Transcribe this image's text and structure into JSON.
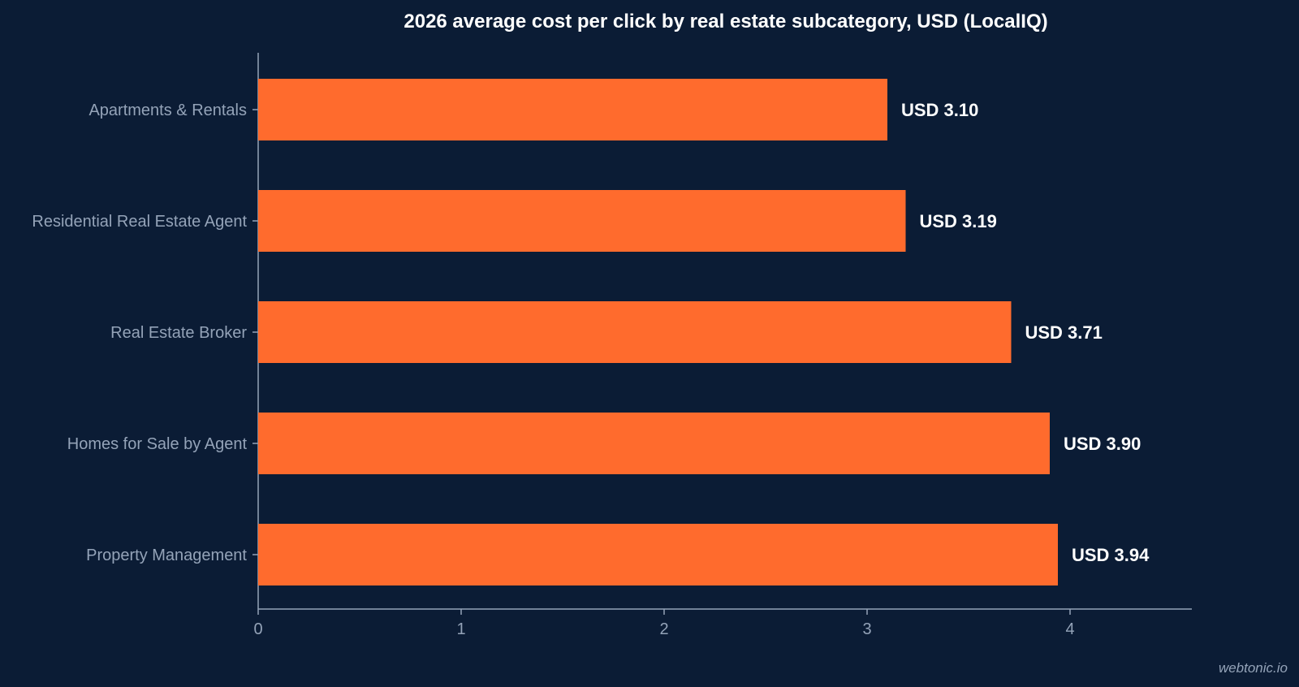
{
  "chart_data": {
    "type": "bar",
    "orientation": "horizontal",
    "title": "2026 average cost per click by real estate subcategory, USD (LocalIQ)",
    "xlabel": "",
    "ylabel": "",
    "categories": [
      "Apartments & Rentals",
      "Residential Real Estate Agent",
      "Real Estate Broker",
      "Homes for Sale by Agent",
      "Property Management"
    ],
    "values": [
      3.1,
      3.19,
      3.71,
      3.9,
      3.94
    ],
    "value_labels": [
      "USD 3.10",
      "USD 3.19",
      "USD 3.71",
      "USD 3.90",
      "USD 3.94"
    ],
    "xlim": [
      0,
      4.6
    ],
    "xticks": [
      0,
      1,
      2,
      3,
      4
    ],
    "grid": false,
    "legend": "none",
    "colors": {
      "background": "#0b1c35",
      "bar": "#ff6b2d",
      "axis": "#94a3b8",
      "text": "#ffffff"
    }
  },
  "watermark": "webtonic.io"
}
